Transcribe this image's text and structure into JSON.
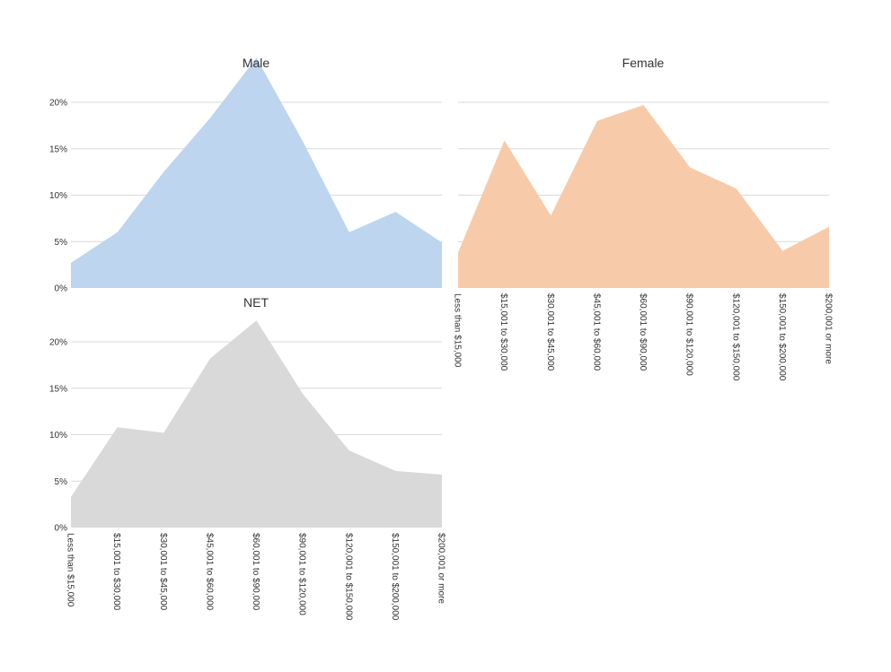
{
  "chart_data": {
    "type": "area",
    "categories": [
      "Less than $15,000",
      "$15,001 to $30,000",
      "$30,001 to $45,000",
      "$45,001 to $60,000",
      "$60,001 to $90,000",
      "$90,001 to $120,000",
      "$120,001 to $150,000",
      "$150,001 to $200,000",
      "$200,001 or more"
    ],
    "ylim": [
      0,
      20
    ],
    "y_ticks": [
      {
        "value": 0,
        "label": "0%"
      },
      {
        "value": 5,
        "label": "5%"
      },
      {
        "value": 10,
        "label": "10%"
      },
      {
        "value": 15,
        "label": "15%"
      },
      {
        "value": 20,
        "label": "20%"
      }
    ],
    "grid": true,
    "panels": [
      {
        "id": "male",
        "title": "Male",
        "color": "#bdd5ee",
        "values": [
          2.7,
          6.0,
          12.5,
          18.3,
          24.8,
          15.8,
          6.0,
          8.2,
          4.9
        ],
        "show_y_axis": true,
        "show_x_labels": false
      },
      {
        "id": "female",
        "title": "Female",
        "color": "#f7cba9",
        "values": [
          3.8,
          15.9,
          7.8,
          18.0,
          19.7,
          13.0,
          10.7,
          4.0,
          6.6
        ],
        "show_y_axis": false,
        "show_x_labels": true
      },
      {
        "id": "net",
        "title": "NET",
        "color": "#d9d9d9",
        "values": [
          3.3,
          10.8,
          10.2,
          18.2,
          22.3,
          14.4,
          8.3,
          6.1,
          5.7
        ],
        "show_y_axis": true,
        "show_x_labels": true
      }
    ]
  }
}
